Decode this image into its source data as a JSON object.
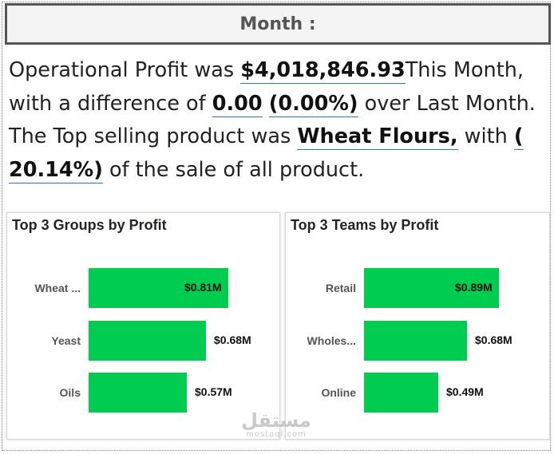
{
  "slicer": {
    "label": "Month :"
  },
  "narrative": {
    "p1": "Operational Profit was ",
    "profit": "$4,018,846.93",
    "p2": "This Month, with a difference of ",
    "diff": "0.00",
    "p3": " ",
    "diff_pct": "(0.00%)",
    "p4": " over Last Month. The Top selling product was ",
    "product": "Wheat Flours,",
    "p5": " with ",
    "share": "( 20.14%)",
    "p6": " of the sale of all product."
  },
  "chart_data": [
    {
      "type": "bar",
      "orientation": "horizontal",
      "title": "Top 3 Groups by Profit",
      "categories": [
        "Wheat ...",
        "Yeast",
        "Oils"
      ],
      "values": [
        0.81,
        0.68,
        0.57
      ],
      "value_labels": [
        "$0.81M",
        "$0.68M",
        "$0.57M"
      ],
      "unit": "$M",
      "color": "#00CC50"
    },
    {
      "type": "bar",
      "orientation": "horizontal",
      "title": "Top 3 Teams by Profit",
      "categories": [
        "Retail",
        "Wholes...",
        "Online"
      ],
      "values": [
        0.89,
        0.68,
        0.49
      ],
      "value_labels": [
        "$0.89M",
        "$0.68M",
        "$0.49M"
      ],
      "unit": "$M",
      "color": "#00CC50"
    }
  ],
  "watermark": {
    "arabic": "مستقل",
    "latin": "mostaql.com"
  }
}
